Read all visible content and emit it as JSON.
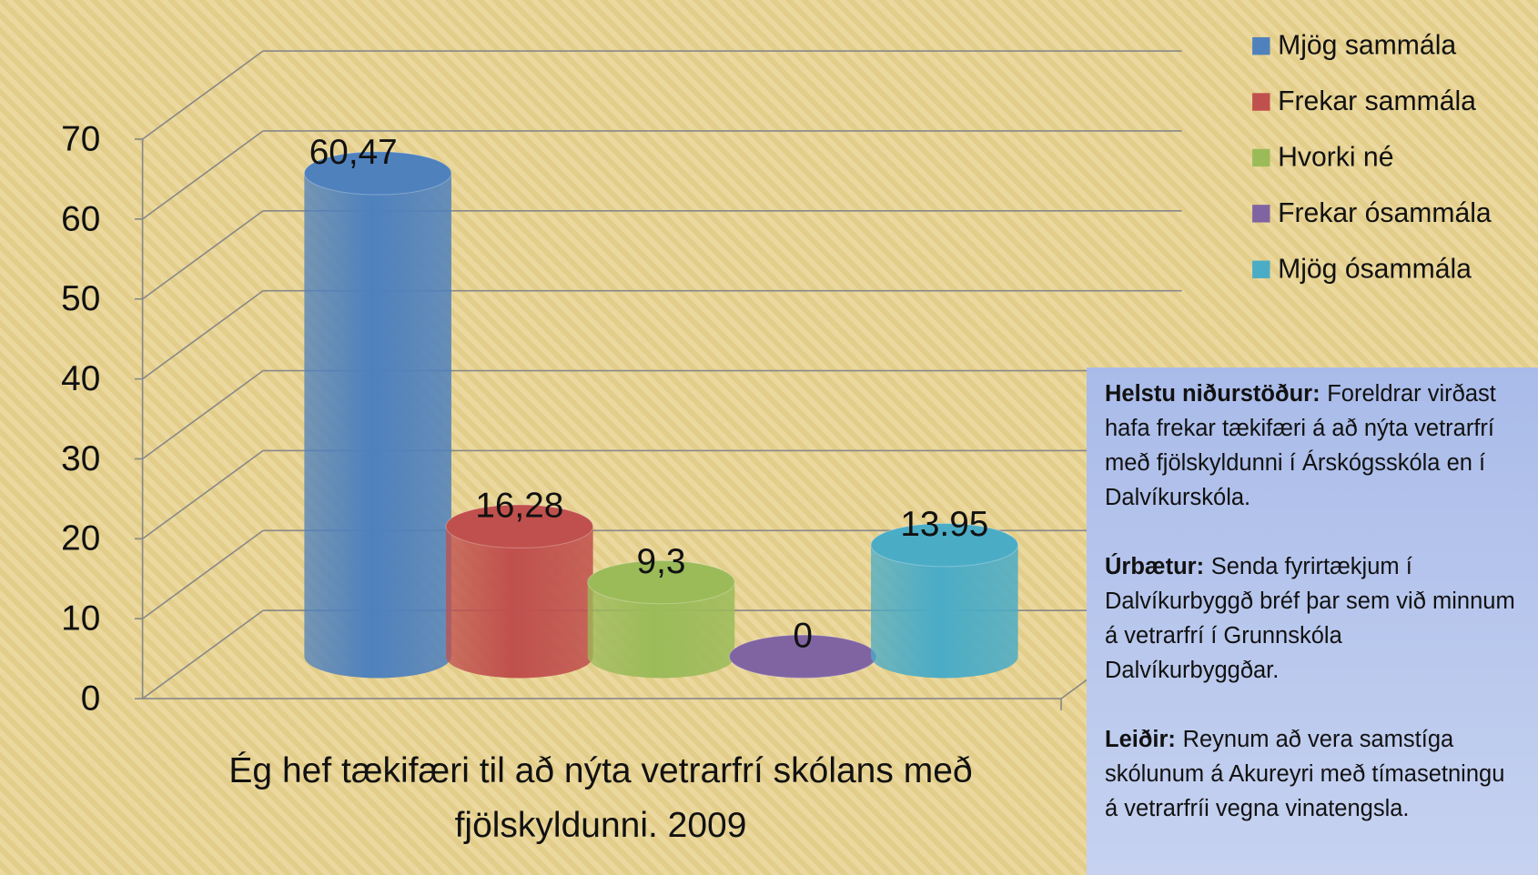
{
  "chart_data": {
    "type": "bar3d",
    "title": "Ég hef tækifæri til að nýta vetrarfrí skólans með fjölskyldunni. 2009",
    "series": [
      {
        "name": "Mjög sammála",
        "color": "#4f81bd",
        "values": [
          60.47
        ],
        "value_labels": [
          "60,47"
        ]
      },
      {
        "name": "Frekar sammála",
        "color": "#c0504d",
        "values": [
          16.28
        ],
        "value_labels": [
          "16,28"
        ]
      },
      {
        "name": "Hvorki né",
        "color": "#9bbb59",
        "values": [
          9.3
        ],
        "value_labels": [
          "9,3"
        ]
      },
      {
        "name": "Frekar ósammála",
        "color": "#8064a2",
        "values": [
          0
        ]
      },
      {
        "name": "Mjög ósammála",
        "color": "#4bacc6",
        "values": [
          13.95
        ]
      }
    ],
    "ylim": [
      0,
      70
    ],
    "yticks": [
      0,
      10,
      20,
      30,
      40,
      50,
      60,
      70
    ],
    "grid": true,
    "legend": "top-right",
    "notes": [
      {
        "label": "Helstu niðurstöður:",
        "text": "Foreldrar virðast hafa frekar tækifæri á að nýta vetrarfrí með fjölskyldunni í Árskógsskóla en í Dalvíkurskóla."
      },
      {
        "label": "Úrbætur:",
        "text": "Senda fyrirtækjum í Dalvíkurbyggð bréf þar sem við minnum á vetrarfrí í Grunnskóla Dalvíkurbyggðar."
      },
      {
        "label": "Leiðir:",
        "text": "Reynum að vera samstíga skólunum á Akureyri með tímasetningu á vetrarfríi vegna vinatengsla."
      }
    ]
  }
}
